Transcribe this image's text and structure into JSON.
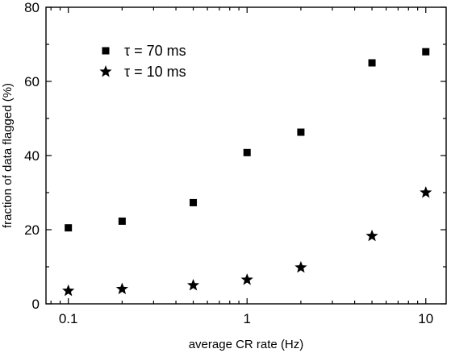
{
  "chart_data": {
    "type": "scatter",
    "xlabel": "average CR rate (Hz)",
    "ylabel": "fraction of data flagged (%)",
    "xscale": "log",
    "xlim": [
      0.075,
      13
    ],
    "ylim": [
      0,
      80
    ],
    "xticks": [
      {
        "value": 0.1,
        "label": "0.1"
      },
      {
        "value": 1,
        "label": "1"
      },
      {
        "value": 10,
        "label": "10"
      }
    ],
    "yticks": [
      {
        "value": 0,
        "label": "0"
      },
      {
        "value": 20,
        "label": "20"
      },
      {
        "value": 40,
        "label": "40"
      },
      {
        "value": 60,
        "label": "60"
      },
      {
        "value": 80,
        "label": "80"
      }
    ],
    "grid": false,
    "legend_position": "top-left",
    "series": [
      {
        "name": "τ = 70 ms",
        "marker": "square",
        "color": "#000000",
        "x": [
          0.1,
          0.2,
          0.5,
          1,
          2,
          5,
          10
        ],
        "y": [
          20.5,
          22.3,
          27.3,
          40.8,
          46.3,
          65.0,
          68.0
        ]
      },
      {
        "name": "τ = 10 ms",
        "marker": "star",
        "color": "#000000",
        "x": [
          0.1,
          0.2,
          0.5,
          1,
          2,
          5,
          10
        ],
        "y": [
          3.5,
          4.0,
          5.0,
          6.5,
          9.8,
          18.3,
          30.0
        ]
      }
    ]
  }
}
